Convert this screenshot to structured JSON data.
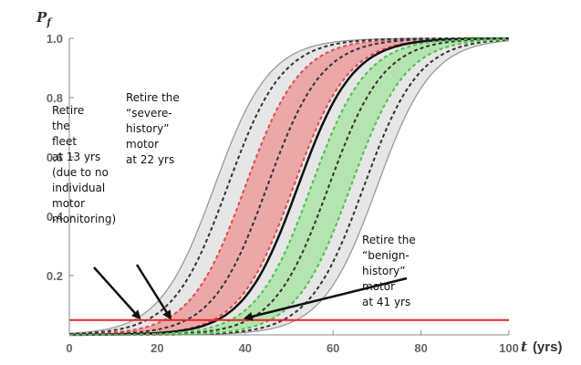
{
  "chart_data": {
    "type": "line",
    "title": "",
    "xlabel": "t",
    "xlabel_unit": "(yrs)",
    "ylabel": "P",
    "ylabel_sub": "f",
    "xlim": [
      0,
      100
    ],
    "ylim": [
      0,
      1.0
    ],
    "xticks": [
      "0",
      "20",
      "40",
      "60",
      "80",
      "100"
    ],
    "yticks": [
      "0.2",
      "0.4",
      "0.6",
      "0.8",
      "1.0"
    ],
    "grid": false,
    "legend": "none",
    "threshold": {
      "y": 0.05,
      "color": "#e8262a"
    },
    "bands": [
      {
        "name": "fleet",
        "color": "#e6e6e6",
        "lower_mid_x": 33,
        "upper_mid_x": 70
      },
      {
        "name": "severe",
        "color": "#eaa8a8",
        "lower_mid_x": 40,
        "upper_mid_x": 51
      },
      {
        "name": "benign",
        "color": "#b5e4b0",
        "lower_mid_x": 55,
        "upper_mid_x": 64
      }
    ],
    "series": [
      {
        "style": "solid",
        "color": "#999999",
        "mid_x": 33
      },
      {
        "style": "solid",
        "color": "#999999",
        "mid_x": 70
      },
      {
        "style": "dashed",
        "color": "#e8474c",
        "mid_x": 40
      },
      {
        "style": "dashed",
        "color": "#e8474c",
        "mid_x": 51
      },
      {
        "style": "dashed",
        "color": "#333333",
        "mid_x": 36
      },
      {
        "style": "dashed",
        "color": "#333333",
        "mid_x": 45
      },
      {
        "style": "solid",
        "color": "#111111",
        "mid_x": 52
      },
      {
        "style": "dashed",
        "color": "#333333",
        "mid_x": 59
      },
      {
        "style": "dashed",
        "color": "#333333",
        "mid_x": 67
      },
      {
        "style": "dashed",
        "color": "#4cc34c",
        "mid_x": 55
      },
      {
        "style": "dashed",
        "color": "#4cc34c",
        "mid_x": 64
      }
    ],
    "curve_steepness": 0.16,
    "annotations": [
      {
        "lines": [
          "Retire",
          "the",
          "fleet",
          "at 13 yrs",
          "(due to no",
          "individual",
          "motor",
          "monitoring)"
        ],
        "target_x": 16,
        "target_y": 0.05
      },
      {
        "lines": [
          "Retire the",
          "“severe-",
          "history”",
          "motor",
          "at 22 yrs"
        ],
        "target_x": 23,
        "target_y": 0.05
      },
      {
        "lines": [
          "Retire the",
          "“benign-",
          "history”",
          "motor",
          "at 41 yrs"
        ],
        "target_x": 40,
        "target_y": 0.05
      }
    ]
  }
}
